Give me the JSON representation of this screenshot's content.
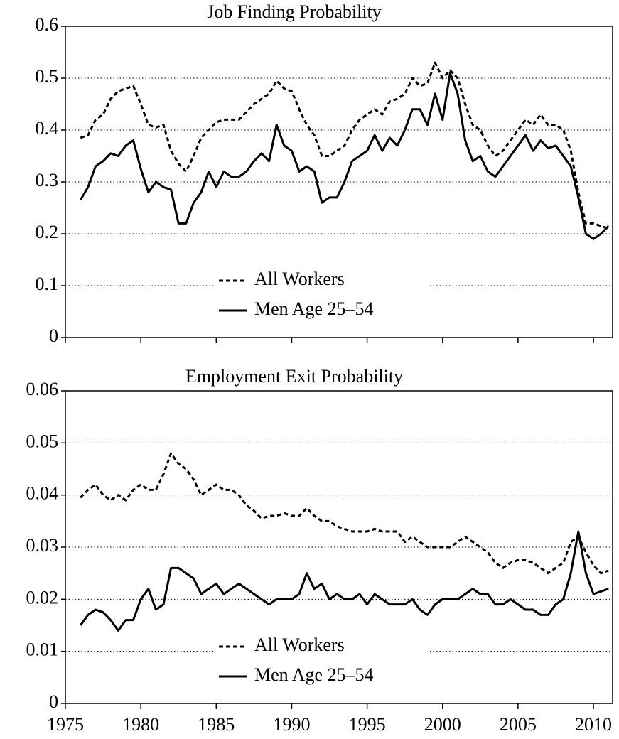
{
  "chart_data": [
    {
      "type": "line",
      "title": "Job Finding Probability",
      "x": [
        1976,
        1976.5,
        1977,
        1977.5,
        1978,
        1978.5,
        1979,
        1979.5,
        1980,
        1980.5,
        1981,
        1981.5,
        1982,
        1982.5,
        1983,
        1983.5,
        1984,
        1984.5,
        1985,
        1985.5,
        1986,
        1986.5,
        1987,
        1987.5,
        1988,
        1988.5,
        1989,
        1989.5,
        1990,
        1990.5,
        1991,
        1991.5,
        1992,
        1992.5,
        1993,
        1993.5,
        1994,
        1994.5,
        1995,
        1995.5,
        1996,
        1996.5,
        1997,
        1997.5,
        1998,
        1998.5,
        1999,
        1999.5,
        2000,
        2000.5,
        2001,
        2001.5,
        2002,
        2002.5,
        2003,
        2003.5,
        2004,
        2004.5,
        2005,
        2005.5,
        2006,
        2006.5,
        2007,
        2007.5,
        2008,
        2008.5,
        2009,
        2009.5,
        2010,
        2010.5,
        2011
      ],
      "series": [
        {
          "name": "All Workers",
          "color": "#000000",
          "linestyle": "dashed",
          "values": [
            0.385,
            0.39,
            0.42,
            0.43,
            0.46,
            0.475,
            0.48,
            0.485,
            0.45,
            0.41,
            0.405,
            0.41,
            0.36,
            0.335,
            0.32,
            0.35,
            0.385,
            0.4,
            0.415,
            0.42,
            0.42,
            0.42,
            0.435,
            0.45,
            0.46,
            0.47,
            0.495,
            0.48,
            0.475,
            0.44,
            0.41,
            0.39,
            0.35,
            0.35,
            0.36,
            0.37,
            0.4,
            0.42,
            0.43,
            0.44,
            0.43,
            0.455,
            0.46,
            0.47,
            0.5,
            0.485,
            0.49,
            0.53,
            0.5,
            0.515,
            0.5,
            0.45,
            0.41,
            0.4,
            0.37,
            0.35,
            0.36,
            0.38,
            0.4,
            0.42,
            0.41,
            0.43,
            0.41,
            0.41,
            0.4,
            0.36,
            0.28,
            0.22,
            0.22,
            0.215,
            0.21
          ]
        },
        {
          "name": "Men Age 25–54",
          "color": "#000000",
          "linestyle": "solid",
          "values": [
            0.265,
            0.29,
            0.33,
            0.34,
            0.355,
            0.35,
            0.37,
            0.38,
            0.325,
            0.28,
            0.3,
            0.29,
            0.285,
            0.22,
            0.22,
            0.26,
            0.28,
            0.32,
            0.29,
            0.32,
            0.31,
            0.31,
            0.32,
            0.34,
            0.355,
            0.34,
            0.41,
            0.37,
            0.36,
            0.32,
            0.33,
            0.32,
            0.26,
            0.27,
            0.27,
            0.3,
            0.34,
            0.35,
            0.36,
            0.39,
            0.36,
            0.385,
            0.37,
            0.4,
            0.44,
            0.44,
            0.41,
            0.47,
            0.42,
            0.51,
            0.47,
            0.38,
            0.34,
            0.35,
            0.32,
            0.31,
            0.33,
            0.35,
            0.37,
            0.39,
            0.36,
            0.38,
            0.365,
            0.37,
            0.35,
            0.33,
            0.27,
            0.2,
            0.19,
            0.2,
            0.215
          ]
        }
      ],
      "xlim": [
        1975,
        2011.27
      ],
      "xticks": [
        1975,
        1980,
        1985,
        1990,
        1995,
        2000,
        2005,
        2010
      ],
      "show_xtick_labels": false,
      "ylim": [
        0,
        0.6
      ],
      "yticks": [
        0,
        0.1,
        0.2,
        0.3,
        0.4,
        0.5,
        0.6
      ],
      "grid": true,
      "legend": "lower center"
    },
    {
      "type": "line",
      "title": "Employment Exit Probability",
      "x": [
        1976,
        1976.5,
        1977,
        1977.5,
        1978,
        1978.5,
        1979,
        1979.5,
        1980,
        1980.5,
        1981,
        1981.5,
        1982,
        1982.5,
        1983,
        1983.5,
        1984,
        1984.5,
        1985,
        1985.5,
        1986,
        1986.5,
        1987,
        1987.5,
        1988,
        1988.5,
        1989,
        1989.5,
        1990,
        1990.5,
        1991,
        1991.5,
        1992,
        1992.5,
        1993,
        1993.5,
        1994,
        1994.5,
        1995,
        1995.5,
        1996,
        1996.5,
        1997,
        1997.5,
        1998,
        1998.5,
        1999,
        1999.5,
        2000,
        2000.5,
        2001,
        2001.5,
        2002,
        2002.5,
        2003,
        2003.5,
        2004,
        2004.5,
        2005,
        2005.5,
        2006,
        2006.5,
        2007,
        2007.5,
        2008,
        2008.5,
        2009,
        2009.5,
        2010,
        2010.5,
        2011
      ],
      "series": [
        {
          "name": "All Workers",
          "color": "#000000",
          "linestyle": "dashed",
          "values": [
            0.0395,
            0.041,
            0.042,
            0.04,
            0.039,
            0.04,
            0.039,
            0.041,
            0.042,
            0.041,
            0.041,
            0.044,
            0.048,
            0.046,
            0.045,
            0.043,
            0.04,
            0.041,
            0.042,
            0.041,
            0.041,
            0.04,
            0.038,
            0.037,
            0.0355,
            0.036,
            0.036,
            0.0365,
            0.036,
            0.036,
            0.0375,
            0.036,
            0.035,
            0.035,
            0.034,
            0.0335,
            0.033,
            0.033,
            0.033,
            0.0335,
            0.033,
            0.033,
            0.033,
            0.031,
            0.032,
            0.031,
            0.03,
            0.03,
            0.03,
            0.03,
            0.031,
            0.032,
            0.031,
            0.03,
            0.029,
            0.027,
            0.026,
            0.027,
            0.0275,
            0.0275,
            0.027,
            0.026,
            0.025,
            0.026,
            0.027,
            0.031,
            0.032,
            0.029,
            0.0265,
            0.025,
            0.0255
          ]
        },
        {
          "name": "Men Age 25–54",
          "color": "#000000",
          "linestyle": "solid",
          "values": [
            0.015,
            0.017,
            0.018,
            0.0175,
            0.016,
            0.014,
            0.016,
            0.016,
            0.02,
            0.022,
            0.018,
            0.019,
            0.026,
            0.026,
            0.025,
            0.024,
            0.021,
            0.022,
            0.023,
            0.021,
            0.022,
            0.023,
            0.022,
            0.021,
            0.02,
            0.019,
            0.02,
            0.02,
            0.02,
            0.021,
            0.025,
            0.022,
            0.023,
            0.02,
            0.021,
            0.02,
            0.02,
            0.021,
            0.019,
            0.021,
            0.02,
            0.019,
            0.019,
            0.019,
            0.02,
            0.018,
            0.017,
            0.019,
            0.02,
            0.02,
            0.02,
            0.021,
            0.022,
            0.021,
            0.021,
            0.019,
            0.019,
            0.02,
            0.019,
            0.018,
            0.018,
            0.017,
            0.017,
            0.019,
            0.02,
            0.025,
            0.033,
            0.025,
            0.021,
            0.0215,
            0.022
          ]
        }
      ],
      "xlim": [
        1975,
        2011.27
      ],
      "xticks": [
        1975,
        1980,
        1985,
        1990,
        1995,
        2000,
        2005,
        2010
      ],
      "show_xtick_labels": true,
      "ylim": [
        0,
        0.06
      ],
      "yticks": [
        0,
        0.01,
        0.02,
        0.03,
        0.04,
        0.05,
        0.06
      ],
      "grid": true,
      "legend": "lower center"
    }
  ]
}
